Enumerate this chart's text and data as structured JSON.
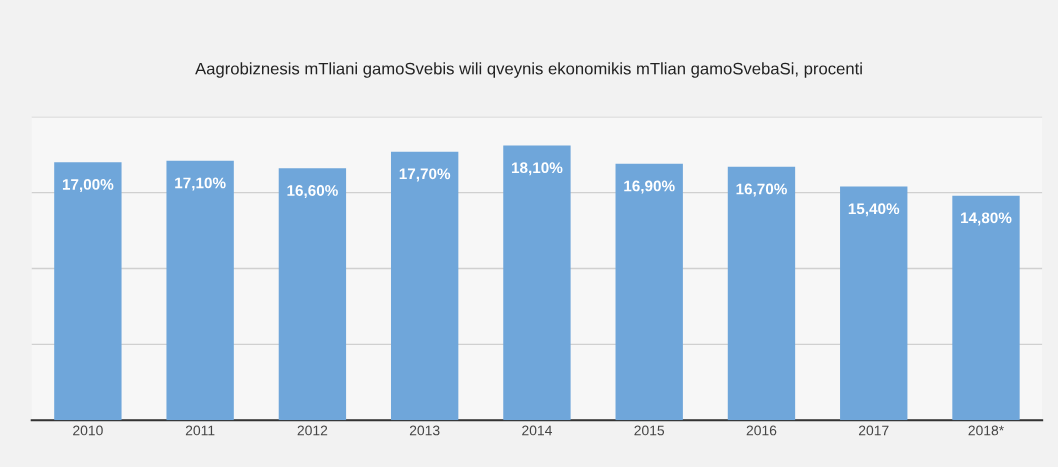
{
  "chart_data": {
    "type": "bar",
    "title": "Aagrobiznesis mTliani gamoSvebis wili qveynis ekonomikis mTlian gamoSvebaSi, procenti",
    "categories": [
      "2010",
      "2011",
      "2012",
      "2013",
      "2014",
      "2015",
      "2016",
      "2017",
      "2018*"
    ],
    "values": [
      17.0,
      17.1,
      16.6,
      17.7,
      18.1,
      16.9,
      16.7,
      15.4,
      14.8
    ],
    "value_labels": [
      "17,00%",
      "17,10%",
      "16,60%",
      "17,70%",
      "18,10%",
      "16,90%",
      "16,70%",
      "15,40%",
      "14,80%"
    ],
    "color": "#6fa6da",
    "ylim": [
      0,
      20
    ],
    "yticks": [
      {
        "value": 0,
        "label": null
      },
      {
        "value": 5,
        "label": null
      },
      {
        "value": 10,
        "label": null
      },
      {
        "value": 15,
        "label": null
      },
      {
        "value": 20,
        "label": null
      }
    ],
    "tick_labels": "x",
    "grid": "y"
  }
}
